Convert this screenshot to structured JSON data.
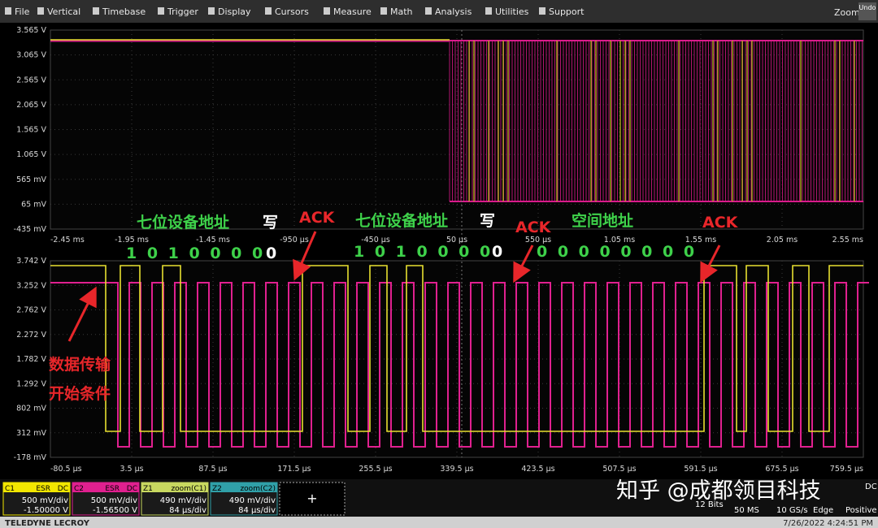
{
  "menu": {
    "items": [
      "File",
      "Vertical",
      "Timebase",
      "Trigger",
      "Display",
      "Cursors",
      "Measure",
      "Math",
      "Analysis",
      "Utilities",
      "Support"
    ],
    "zoom": "Zoom",
    "undo": "Undo"
  },
  "upper_grid": {
    "y_labels": [
      "3.565 V",
      "3.065 V",
      "2.565 V",
      "2.065 V",
      "1.565 V",
      "1.065 V",
      "565 mV",
      "65 mV",
      "-435 mV"
    ],
    "x_labels": [
      "-2.45 ms",
      "-1.95 ms",
      "-1.45 ms",
      "-950 µs",
      "-450 µs",
      "50 µs",
      "550 µs",
      "1.05 ms",
      "1.55 ms",
      "2.05 ms",
      "2.55 ms"
    ]
  },
  "lower_grid": {
    "y_labels": [
      "3.742 V",
      "3.252 V",
      "2.762 V",
      "2.272 V",
      "1.782 V",
      "1.292 V",
      "802 mV",
      "312 mV",
      "-178 mV"
    ],
    "x_labels": [
      "-80.5 µs",
      "3.5 µs",
      "87.5 µs",
      "171.5 µs",
      "255.5 µs",
      "339.5 µs",
      "423.5 µs",
      "507.5 µs",
      "591.5 µs",
      "675.5 µs",
      "759.5 µs"
    ]
  },
  "annotations": {
    "address_1": "七位设备地址",
    "write_1": "写",
    "ack_1": "ACK",
    "address_2": "七位设备地址",
    "write_2": "写",
    "ack_2": "ACK",
    "space_address": "空间地址",
    "ack_3": "ACK",
    "bits_1": "1 0 1 0 0 0 0",
    "rw_1": "0",
    "bits_2": "1 0 1 0 0 0 0",
    "rw_2": "0",
    "bits_3": "0 0 0 0 0 0 0 0",
    "start_1": "数据传输",
    "start_2": "开始条件"
  },
  "channels": [
    {
      "name": "C1",
      "tag1": "ESR",
      "tag2": "DC",
      "scale": "500 mV/div",
      "offset": "-1.50000 V"
    },
    {
      "name": "C2",
      "tag1": "ESR",
      "tag2": "DC",
      "scale": "500 mV/div",
      "offset": "-1.56500 V"
    },
    {
      "name": "Z1",
      "tag1": "zoom(C1)",
      "scale": "490 mV/div",
      "offset": "84 µs/div"
    },
    {
      "name": "Z2",
      "tag1": "zoom(C2)",
      "scale": "490 mV/div",
      "offset": "84 µs/div"
    }
  ],
  "add_button": "+",
  "acquisition": {
    "bits": "12 Bits",
    "memory": "50 MS",
    "rate": "10 GS/s",
    "trigger_type": "Edge",
    "slope": "Positive",
    "coupling": "DC"
  },
  "watermark": "知乎 @成都领目科技",
  "footer": {
    "brand": "TELEDYNE LECROY",
    "timestamp": "7/26/2022 4:24:51 PM"
  }
}
